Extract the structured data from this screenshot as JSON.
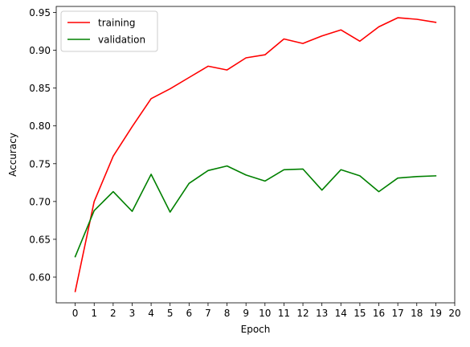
{
  "chart_data": {
    "type": "line",
    "xlabel": "Epoch",
    "ylabel": "Accuracy",
    "xlim": [
      -1,
      20
    ],
    "ylim": [
      0.566,
      0.958
    ],
    "xticks": [
      0,
      1,
      2,
      3,
      4,
      5,
      6,
      7,
      8,
      9,
      10,
      11,
      12,
      13,
      14,
      15,
      16,
      17,
      18,
      19,
      20
    ],
    "yticks": [
      0.6,
      0.65,
      0.7,
      0.75,
      0.8,
      0.85,
      0.9,
      0.95
    ],
    "legend_position": "upper-left",
    "grid": false,
    "series": [
      {
        "name": "training",
        "color": "#ff0000",
        "x": [
          0,
          1,
          2,
          3,
          4,
          5,
          6,
          7,
          8,
          9,
          10,
          11,
          12,
          13,
          14,
          15,
          16,
          17,
          18,
          19
        ],
        "values": [
          0.581,
          0.7,
          0.76,
          0.799,
          0.836,
          0.849,
          0.864,
          0.879,
          0.874,
          0.89,
          0.894,
          0.915,
          0.909,
          0.919,
          0.927,
          0.912,
          0.931,
          0.943,
          0.941,
          0.937
        ]
      },
      {
        "name": "validation",
        "color": "#008000",
        "x": [
          0,
          1,
          2,
          3,
          4,
          5,
          6,
          7,
          8,
          9,
          10,
          11,
          12,
          13,
          14,
          15,
          16,
          17,
          18,
          19
        ],
        "values": [
          0.627,
          0.688,
          0.713,
          0.687,
          0.736,
          0.686,
          0.724,
          0.741,
          0.747,
          0.735,
          0.727,
          0.742,
          0.743,
          0.715,
          0.742,
          0.734,
          0.713,
          0.731,
          0.733,
          0.734
        ]
      }
    ]
  }
}
